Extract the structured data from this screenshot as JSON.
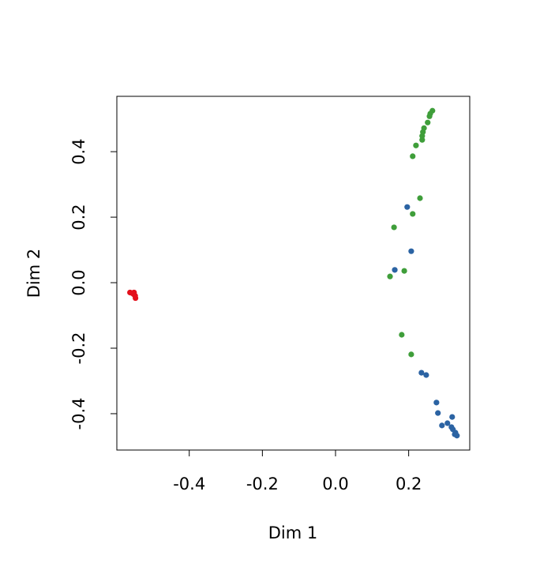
{
  "chart_data": {
    "type": "scatter",
    "x_label": "Dim 1",
    "y_label": "Dim 2",
    "xlim": [
      -0.598,
      0.367
    ],
    "ylim": [
      -0.511,
      0.569
    ],
    "xticks": [
      -0.4,
      -0.2,
      {
        "value": 0,
        "label": "0.0"
      },
      0.2
    ],
    "yticks": [
      -0.4,
      -0.2,
      {
        "value": 0,
        "label": "0.0"
      },
      0.2,
      0.4
    ],
    "series": [
      {
        "color": "#e3101c",
        "x": [
          -0.562,
          -0.556,
          -0.552,
          -0.548,
          -0.547,
          -0.551
        ],
        "y": [
          -0.03,
          -0.032,
          -0.035,
          -0.04,
          -0.047,
          -0.03
        ]
      },
      {
        "color": "#3f9e3a",
        "x": [
          0.265,
          0.259,
          0.257,
          0.252,
          0.242,
          0.239,
          0.237,
          0.237,
          0.22,
          0.211,
          0.231,
          0.211,
          0.16,
          0.188,
          0.149,
          0.181,
          0.207
        ],
        "y": [
          0.525,
          0.516,
          0.508,
          0.489,
          0.472,
          0.46,
          0.448,
          0.436,
          0.419,
          0.386,
          0.258,
          0.21,
          0.169,
          0.036,
          0.019,
          -0.159,
          -0.219
        ]
      },
      {
        "color": "#2b63a3",
        "x": [
          0.196,
          0.207,
          0.162,
          0.235,
          0.248,
          0.276,
          0.28,
          0.319,
          0.291,
          0.306,
          0.317,
          0.321,
          0.328,
          0.332,
          0.326
        ],
        "y": [
          0.231,
          0.096,
          0.039,
          -0.275,
          -0.282,
          -0.366,
          -0.398,
          -0.41,
          -0.436,
          -0.429,
          -0.441,
          -0.448,
          -0.458,
          -0.467,
          -0.463
        ]
      }
    ]
  }
}
